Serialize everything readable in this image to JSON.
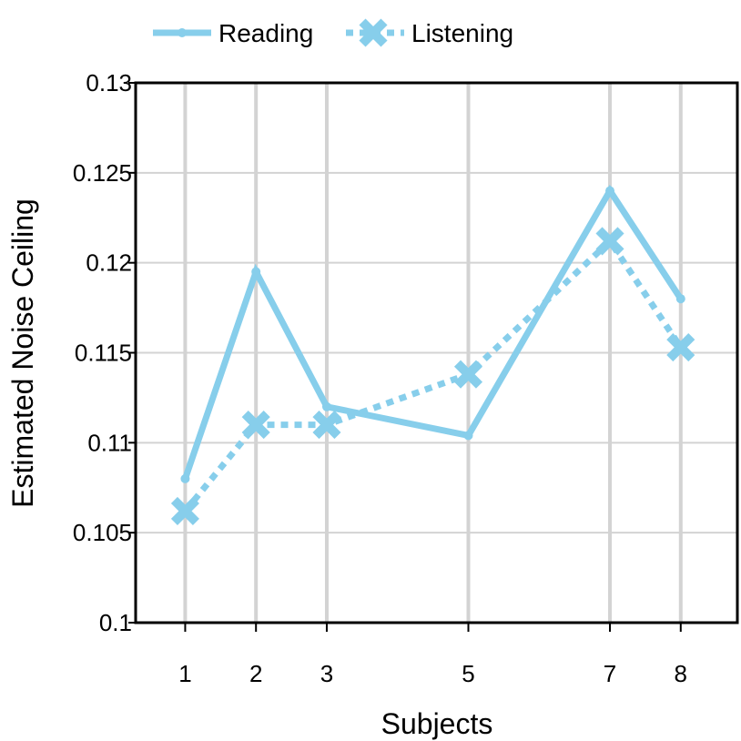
{
  "chart_data": {
    "type": "line",
    "xlabel": "Subjects",
    "ylabel": "Estimated Noise Ceiling",
    "x": [
      1,
      2,
      3,
      5,
      7,
      8
    ],
    "xticks": [
      "1",
      "2",
      "3",
      "5",
      "7",
      "8"
    ],
    "xlim": [
      0.3,
      8.8
    ],
    "ylim": [
      0.1,
      0.13
    ],
    "yticks": [
      "0.1",
      "0.105",
      "0.11",
      "0.115",
      "0.12",
      "0.125",
      "0.13"
    ],
    "grid": true,
    "legend_position": "top",
    "color": "#87ceeb",
    "series": [
      {
        "name": "Reading",
        "style": "solid",
        "marker": "dot",
        "values": [
          0.108,
          0.1195,
          0.112,
          0.1104,
          0.124,
          0.118
        ]
      },
      {
        "name": "Listening",
        "style": "dotted",
        "marker": "x",
        "values": [
          0.1062,
          0.111,
          0.111,
          0.1138,
          0.1212,
          0.1153
        ]
      }
    ]
  }
}
